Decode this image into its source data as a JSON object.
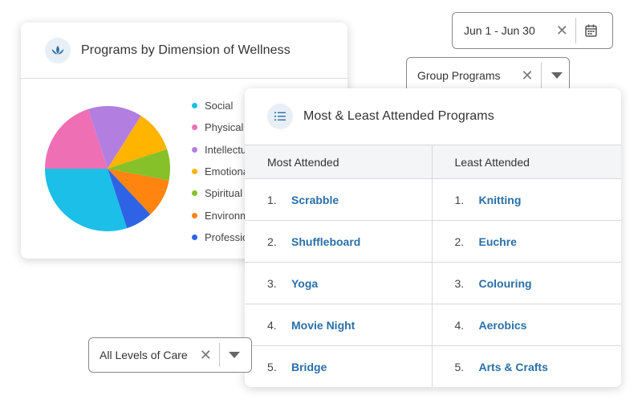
{
  "wellness_card": {
    "title": "Programs by Dimension of Wellness",
    "icon": "lotus-icon",
    "legend": [
      {
        "label": "Social",
        "color": "#1bbfe8"
      },
      {
        "label": "Physical",
        "color": "#ee6fb4"
      },
      {
        "label": "Intellectual",
        "color": "#b27fe0"
      },
      {
        "label": "Emotional",
        "color": "#ffb400"
      },
      {
        "label": "Spiritual",
        "color": "#86c12a"
      },
      {
        "label": "Environmental",
        "color": "#ff8410"
      },
      {
        "label": "Professional",
        "color": "#2f63e5"
      }
    ],
    "pie_slices": [
      {
        "label": "Social",
        "value": 30,
        "color": "#1bbfe8"
      },
      {
        "label": "Physical",
        "value": 20,
        "color": "#ee6fb4"
      },
      {
        "label": "Intellectual",
        "value": 14,
        "color": "#b27fe0"
      },
      {
        "label": "Emotional",
        "value": 11,
        "color": "#ffb400"
      },
      {
        "label": "Spiritual",
        "value": 8,
        "color": "#86c12a"
      },
      {
        "label": "Environmental",
        "value": 10,
        "color": "#ff8410"
      },
      {
        "label": "Professional",
        "value": 7,
        "color": "#2f63e5"
      }
    ]
  },
  "programs_card": {
    "title": "Most & Least Attended Programs",
    "icon": "numbered-list-icon",
    "headers": [
      "Most Attended",
      "Least Attended"
    ],
    "rows": [
      {
        "rank": "1.",
        "most": "Scrabble",
        "least": "Knitting"
      },
      {
        "rank": "2.",
        "most": "Shuffleboard",
        "least": "Euchre"
      },
      {
        "rank": "3.",
        "most": "Yoga",
        "least": "Colouring"
      },
      {
        "rank": "4.",
        "most": "Movie Night",
        "least": "Aerobics"
      },
      {
        "rank": "5.",
        "most": "Bridge",
        "least": "Arts & Crafts"
      }
    ]
  },
  "filters": {
    "date": {
      "value": "Jun 1 - Jun 30",
      "clear_icon": "close-icon",
      "picker_icon": "calendar-icon"
    },
    "group": {
      "value": "Group Programs",
      "clear_icon": "close-icon",
      "toggle_icon": "caret-down-icon"
    },
    "care": {
      "value": "All Levels of Care",
      "clear_icon": "close-icon",
      "toggle_icon": "caret-down-icon"
    }
  }
}
